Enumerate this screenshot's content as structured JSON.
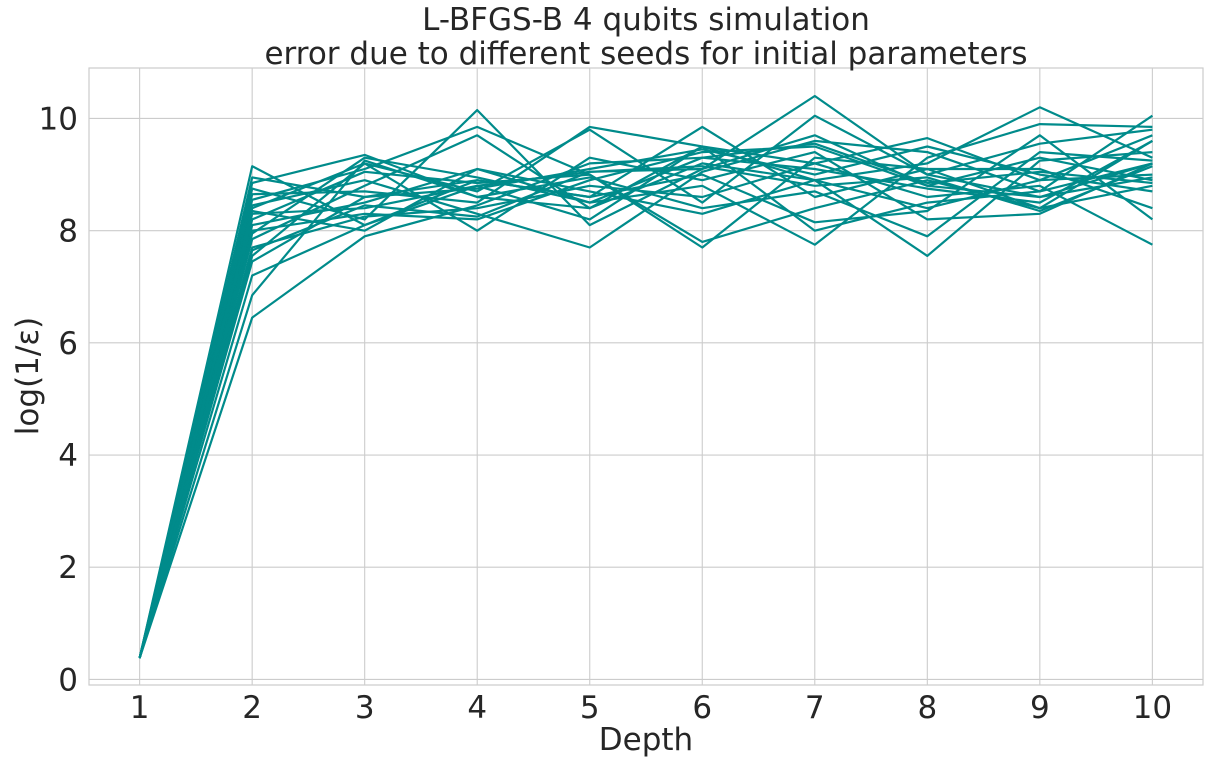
{
  "chart_data": {
    "type": "line",
    "title": "L-BFGS-B 4 qubits simulation",
    "subtitle": "error due to different seeds for initial parameters",
    "xlabel": "Depth",
    "ylabel": "log(1/ε)",
    "x": [
      1,
      2,
      3,
      4,
      5,
      6,
      7,
      8,
      9,
      10
    ],
    "xticks": [
      "1",
      "2",
      "3",
      "4",
      "5",
      "6",
      "7",
      "8",
      "9",
      "10"
    ],
    "yticks": [
      "0",
      "2",
      "4",
      "6",
      "8",
      "10"
    ],
    "ytick_values": [
      0,
      2,
      4,
      6,
      8,
      10
    ],
    "xlim": [
      0.55,
      10.45
    ],
    "ylim": [
      -0.1,
      10.9
    ],
    "grid": true,
    "line_color": "#008b8b",
    "series": [
      {
        "values": [
          0.38,
          9.15,
          8.1,
          8.8,
          9.05,
          9.1,
          10.4,
          9.0,
          8.6,
          9.2
        ]
      },
      {
        "values": [
          0.38,
          8.95,
          8.6,
          8.9,
          8.6,
          9.85,
          8.6,
          9.1,
          8.4,
          8.8
        ]
      },
      {
        "values": [
          0.38,
          8.85,
          9.35,
          8.6,
          8.4,
          9.5,
          9.2,
          9.65,
          8.9,
          9.7
        ]
      },
      {
        "values": [
          0.38,
          8.75,
          8.2,
          10.15,
          8.1,
          9.1,
          9.7,
          8.8,
          9.3,
          8.9
        ]
      },
      {
        "values": [
          0.38,
          8.65,
          8.7,
          8.5,
          9.85,
          9.5,
          8.9,
          9.2,
          10.2,
          9.3
        ]
      },
      {
        "values": [
          0.38,
          8.55,
          9.1,
          9.85,
          9.0,
          7.8,
          8.4,
          8.9,
          8.4,
          9.6
        ]
      },
      {
        "values": [
          0.38,
          8.45,
          8.9,
          8.3,
          7.7,
          9.05,
          9.6,
          9.4,
          8.7,
          10.05
        ]
      },
      {
        "values": [
          0.38,
          8.4,
          9.2,
          8.7,
          9.8,
          8.5,
          10.05,
          9.0,
          9.55,
          9.8
        ]
      },
      {
        "values": [
          0.38,
          8.3,
          8.4,
          8.8,
          8.2,
          9.5,
          8.0,
          8.5,
          8.7,
          9.2
        ]
      },
      {
        "values": [
          0.38,
          8.2,
          9.05,
          8.85,
          9.0,
          7.7,
          9.3,
          9.1,
          9.1,
          8.4
        ]
      },
      {
        "values": [
          0.38,
          8.1,
          8.5,
          9.1,
          8.7,
          8.3,
          8.9,
          7.55,
          9.25,
          9.4
        ]
      },
      {
        "values": [
          0.38,
          8.0,
          8.3,
          8.2,
          8.9,
          9.4,
          9.5,
          8.8,
          8.6,
          8.95
        ]
      },
      {
        "values": [
          0.38,
          7.95,
          9.3,
          8.95,
          8.5,
          8.8,
          7.75,
          9.3,
          9.9,
          9.85
        ]
      },
      {
        "values": [
          0.38,
          7.85,
          8.8,
          9.7,
          8.4,
          9.2,
          8.9,
          8.4,
          8.9,
          9.0
        ]
      },
      {
        "values": [
          0.38,
          7.7,
          8.25,
          8.4,
          8.8,
          8.6,
          9.2,
          8.6,
          8.8,
          7.75
        ]
      },
      {
        "values": [
          0.38,
          7.55,
          9.2,
          8.0,
          9.3,
          8.9,
          9.4,
          8.2,
          8.3,
          9.2
        ]
      },
      {
        "values": [
          0.38,
          7.45,
          8.6,
          8.75,
          9.1,
          9.45,
          9.0,
          9.5,
          9.0,
          8.7
        ]
      },
      {
        "values": [
          0.38,
          7.2,
          8.1,
          8.9,
          8.6,
          9.0,
          8.15,
          8.35,
          9.7,
          8.2
        ]
      },
      {
        "values": [
          0.38,
          6.85,
          9.25,
          8.6,
          8.95,
          8.4,
          8.7,
          7.9,
          9.4,
          9.25
        ]
      },
      {
        "values": [
          0.38,
          6.45,
          7.9,
          8.45,
          9.2,
          9.3,
          9.1,
          8.75,
          8.5,
          9.6
        ]
      },
      {
        "values": [
          0.38,
          8.35,
          8.0,
          9.1,
          8.5,
          9.3,
          9.55,
          8.85,
          9.05,
          8.85
        ]
      },
      {
        "values": [
          0.38,
          7.65,
          8.45,
          8.25,
          9.05,
          9.15,
          8.8,
          8.95,
          8.35,
          9.15
        ]
      }
    ]
  }
}
